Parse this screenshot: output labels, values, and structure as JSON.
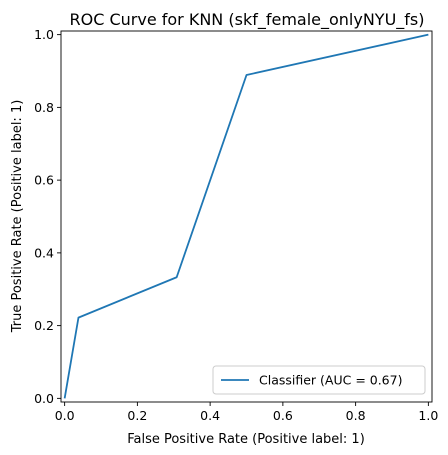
{
  "chart_data": {
    "type": "line",
    "title": "ROC Curve for KNN (skf_female_onlyNYU_fs)",
    "xlabel": "False Positive Rate (Positive label: 1)",
    "ylabel": "True Positive Rate (Positive label: 1)",
    "xlim": [
      -0.01,
      1.01
    ],
    "ylim": [
      -0.01,
      1.01
    ],
    "xticks": [
      0.0,
      0.2,
      0.4,
      0.6,
      0.8,
      1.0
    ],
    "yticks": [
      0.0,
      0.2,
      0.4,
      0.6,
      0.8,
      1.0
    ],
    "xtick_labels": [
      "0.0",
      "0.2",
      "0.4",
      "0.6",
      "0.8",
      "1.0"
    ],
    "ytick_labels": [
      "0.0",
      "0.2",
      "0.4",
      "0.6",
      "0.8",
      "1.0"
    ],
    "grid": false,
    "legend_position": "lower-right",
    "series": [
      {
        "name": "Classifier (AUC = 0.67)",
        "color": "#1f77b4",
        "x": [
          0.0,
          0.038,
          0.308,
          0.5,
          1.0
        ],
        "y": [
          0.0,
          0.222,
          0.333,
          0.889,
          1.0
        ]
      }
    ]
  }
}
